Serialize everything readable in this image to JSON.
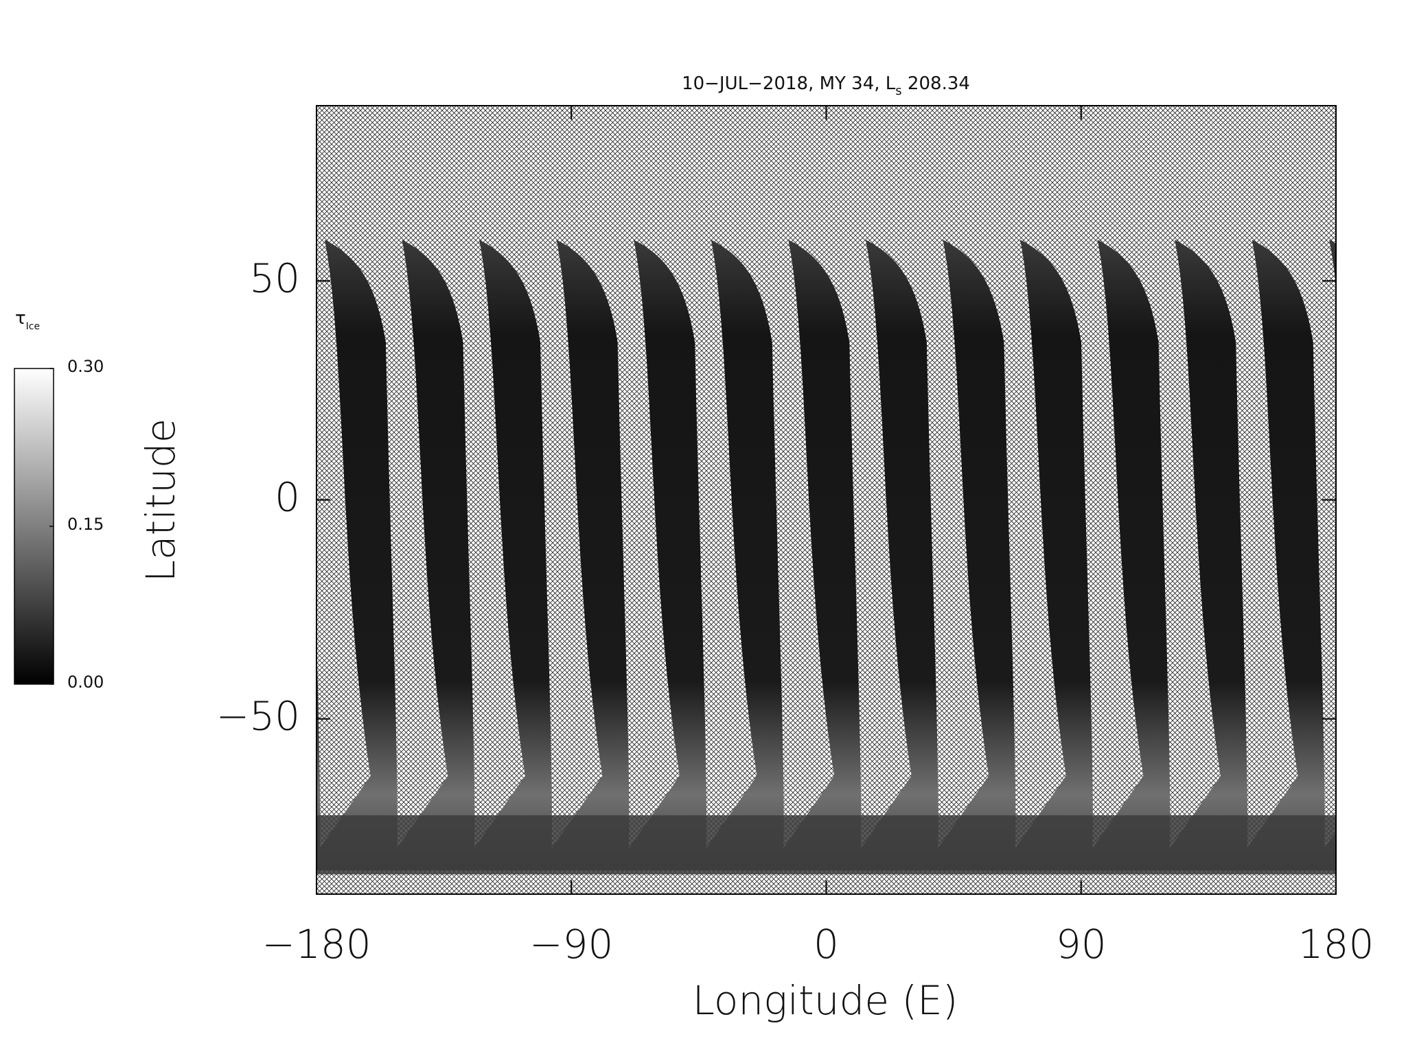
{
  "chart_data": {
    "type": "map",
    "title_parts": {
      "main": "10−JUL−2018, MY 34,  L",
      "subscript": "s",
      "tail": " 208.34"
    },
    "x_label": "Longitude (E)",
    "y_label": "Latitude",
    "xlim": [
      -180,
      180
    ],
    "ylim": [
      -90,
      90
    ],
    "xticks": [
      {
        "value": -180,
        "label": "−180"
      },
      {
        "value": -90,
        "label": "−90"
      },
      0,
      90,
      180
    ],
    "yticks": [
      {
        "value": -50,
        "label": "−50"
      },
      0,
      50
    ],
    "colorbar": {
      "label": "τ",
      "label_subscript": "Ice",
      "range": [
        0,
        0.3
      ],
      "colors": [
        "#000000",
        "#ffffff"
      ],
      "ticks": [
        {
          "value": 0,
          "label": "0.00"
        },
        {
          "value": 0.15,
          "label": "0.15"
        },
        {
          "value": 0.3,
          "label": "0.30"
        }
      ]
    }
  }
}
